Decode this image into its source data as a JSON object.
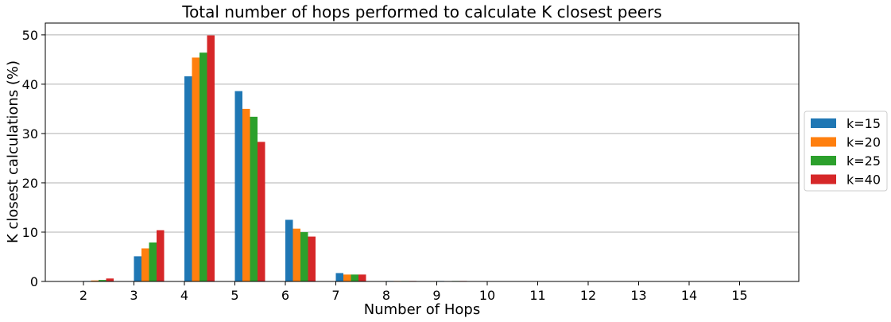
{
  "chart_data": {
    "type": "bar",
    "title": "Total number of hops performed to calculate K closest peers",
    "xlabel": "Number of Hops",
    "ylabel": "K closest calculations (%)",
    "categories": [
      "2",
      "3",
      "4",
      "5",
      "6",
      "7",
      "8",
      "9",
      "10",
      "11",
      "12",
      "13",
      "14",
      "15"
    ],
    "series": [
      {
        "name": "k=15",
        "color": "#1f77b4",
        "values": [
          0.1,
          5.1,
          41.6,
          38.6,
          12.5,
          1.7,
          0.1,
          0.1,
          0,
          0,
          0,
          0,
          0,
          0
        ]
      },
      {
        "name": "k=20",
        "color": "#ff7f0e",
        "values": [
          0.2,
          6.7,
          45.4,
          35.0,
          10.7,
          1.4,
          0.1,
          0.05,
          0,
          0,
          0,
          0,
          0,
          0
        ]
      },
      {
        "name": "k=25",
        "color": "#2ca02c",
        "values": [
          0.3,
          7.9,
          46.4,
          33.4,
          10.0,
          1.4,
          0.1,
          0.1,
          0,
          0,
          0,
          0,
          0,
          0
        ]
      },
      {
        "name": "k=40",
        "color": "#d62728",
        "values": [
          0.6,
          10.4,
          49.9,
          28.3,
          9.1,
          1.4,
          0.1,
          0.1,
          0,
          0,
          0,
          0,
          0,
          0
        ]
      }
    ],
    "ylim": [
      0,
      52.4
    ],
    "yticks": [
      0,
      10,
      20,
      30,
      40,
      50
    ],
    "grid": "y",
    "legend_position": "right-outside"
  }
}
